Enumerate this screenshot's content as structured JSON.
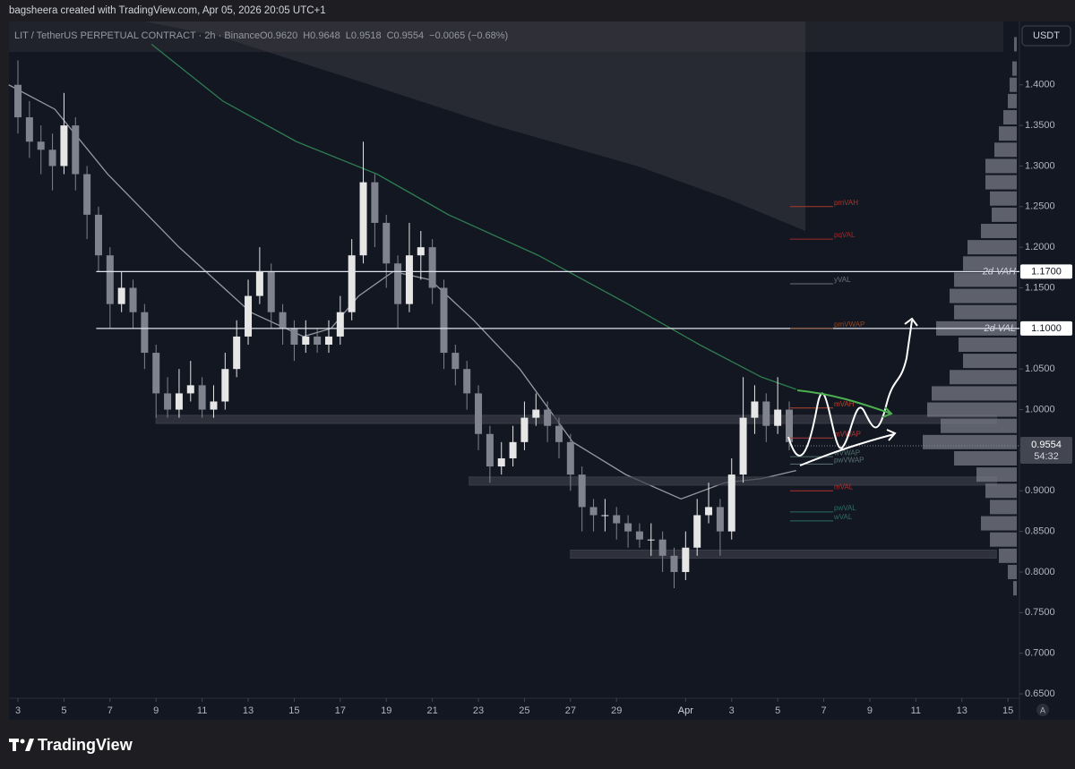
{
  "chart_data": {
    "type": "candlestick",
    "attribution": "bagsheera created with TradingView.com, Apr 05, 2026 20:05 UTC+1",
    "symbol": "LIT / TetherUS PERPETUAL CONTRACT · 2h · Binance",
    "header_values": [
      "O0.9620",
      "H0.9648",
      "L0.9518",
      "C0.9554",
      "−0.0065 (−0.68%)"
    ],
    "currency": "USDT",
    "brand": "TradingView",
    "auto_button": "A",
    "up_color": "#e6e6e6",
    "down_color": "#80838d",
    "x": [
      3,
      3.5,
      4,
      4.5,
      5,
      5.5,
      6,
      6.5,
      7,
      7.5,
      8,
      8.5,
      9,
      9.5,
      10,
      10.5,
      11,
      11.5,
      12,
      12.5,
      13,
      13.5,
      14,
      14.5,
      15,
      15.5,
      16,
      16.5,
      17,
      17.5,
      18,
      18.5,
      19,
      19.5,
      20,
      20.5,
      21,
      21.5,
      22,
      22.5,
      23,
      23.5,
      24,
      24.5,
      25,
      25.5,
      26,
      26.5,
      27,
      27.5,
      28,
      28.5,
      29,
      29.5,
      30,
      30.5,
      31,
      31.5,
      32,
      32.5,
      33,
      33.5,
      34,
      34.5,
      35,
      35.5,
      36,
      36.5
    ],
    "open": [
      1.4,
      1.36,
      1.33,
      1.32,
      1.3,
      1.35,
      1.29,
      1.24,
      1.19,
      1.13,
      1.15,
      1.12,
      1.07,
      1.02,
      1.0,
      1.02,
      1.03,
      1.0,
      1.01,
      1.05,
      1.09,
      1.14,
      1.17,
      1.12,
      1.1,
      1.08,
      1.09,
      1.08,
      1.09,
      1.12,
      1.19,
      1.28,
      1.23,
      1.18,
      1.13,
      1.19,
      1.2,
      1.15,
      1.07,
      1.05,
      1.02,
      0.97,
      0.93,
      0.94,
      0.96,
      0.99,
      1.0,
      0.98,
      0.96,
      0.92,
      0.88,
      0.87,
      0.87,
      0.86,
      0.85,
      0.84,
      0.84,
      0.82,
      0.8,
      0.83,
      0.87,
      0.88,
      0.85,
      0.92,
      0.99,
      1.01,
      0.98,
      1.0
    ],
    "high": [
      1.43,
      1.38,
      1.35,
      1.34,
      1.39,
      1.36,
      1.3,
      1.25,
      1.2,
      1.17,
      1.16,
      1.13,
      1.08,
      1.04,
      1.05,
      1.06,
      1.04,
      1.03,
      1.07,
      1.11,
      1.16,
      1.2,
      1.18,
      1.13,
      1.11,
      1.11,
      1.1,
      1.11,
      1.14,
      1.21,
      1.33,
      1.29,
      1.24,
      1.19,
      1.23,
      1.22,
      1.21,
      1.16,
      1.08,
      1.06,
      1.03,
      0.98,
      0.96,
      0.98,
      1.01,
      1.02,
      1.01,
      0.99,
      0.97,
      0.93,
      0.89,
      0.89,
      0.88,
      0.87,
      0.86,
      0.86,
      0.85,
      0.83,
      0.85,
      0.89,
      0.91,
      0.89,
      0.94,
      1.04,
      1.03,
      1.02,
      1.04,
      1.01
    ],
    "low": [
      1.34,
      1.31,
      1.29,
      1.27,
      1.29,
      1.27,
      1.21,
      1.17,
      1.1,
      1.12,
      1.1,
      1.05,
      0.99,
      0.99,
      0.99,
      1.01,
      0.99,
      0.99,
      1.0,
      1.04,
      1.08,
      1.13,
      1.1,
      1.08,
      1.06,
      1.07,
      1.07,
      1.07,
      1.08,
      1.11,
      1.18,
      1.2,
      1.15,
      1.1,
      1.12,
      1.16,
      1.13,
      1.05,
      1.03,
      1.0,
      0.95,
      0.91,
      0.92,
      0.93,
      0.95,
      0.98,
      0.96,
      0.94,
      0.9,
      0.85,
      0.85,
      0.85,
      0.84,
      0.83,
      0.83,
      0.82,
      0.8,
      0.78,
      0.79,
      0.82,
      0.86,
      0.82,
      0.84,
      0.91,
      0.97,
      0.96,
      0.97,
      0.95
    ],
    "close": [
      1.36,
      1.33,
      1.32,
      1.3,
      1.35,
      1.29,
      1.24,
      1.19,
      1.13,
      1.15,
      1.12,
      1.07,
      1.02,
      1.0,
      1.02,
      1.03,
      1.0,
      1.01,
      1.05,
      1.09,
      1.14,
      1.17,
      1.12,
      1.1,
      1.08,
      1.09,
      1.08,
      1.09,
      1.12,
      1.19,
      1.28,
      1.23,
      1.18,
      1.13,
      1.19,
      1.2,
      1.15,
      1.07,
      1.05,
      1.02,
      0.97,
      0.93,
      0.94,
      0.96,
      0.99,
      1.0,
      0.98,
      0.96,
      0.92,
      0.88,
      0.87,
      0.87,
      0.86,
      0.85,
      0.84,
      0.84,
      0.82,
      0.8,
      0.83,
      0.87,
      0.88,
      0.85,
      0.92,
      0.99,
      1.01,
      0.98,
      1.0,
      0.96
    ],
    "series": [
      {
        "color": "#9598a1",
        "x": [
          2.6,
          4.6,
          6.9,
          10.0,
          13.1,
          15.4,
          16.6,
          17.8,
          19.3,
          20.9,
          22.8,
          24.8,
          27.1,
          29.4,
          31.8,
          33.7,
          35.3,
          36.8
        ],
        "values": [
          1.4,
          1.37,
          1.29,
          1.2,
          1.12,
          1.09,
          1.1,
          1.14,
          1.17,
          1.16,
          1.11,
          1.05,
          0.96,
          0.92,
          0.89,
          0.91,
          0.915,
          0.925
        ]
      },
      {
        "color": "#2e7d4f",
        "x": [
          8.8,
          11.9,
          15.1,
          18.6,
          21.7,
          25.6,
          29.5,
          32.6,
          35.3,
          36.8
        ],
        "values": [
          1.45,
          1.38,
          1.33,
          1.29,
          1.24,
          1.19,
          1.13,
          1.08,
          1.04,
          1.025
        ]
      },
      {
        "color": "#3a3b42",
        "area": true,
        "x": [
          8.5,
          11.7,
          18.3,
          23.7,
          29.9,
          33.8,
          37.2
        ],
        "values": [
          1.478,
          1.46,
          1.4,
          1.35,
          1.3,
          1.26,
          1.22
        ]
      }
    ],
    "levels": [
      {
        "label": "2d VAH",
        "value": 1.17,
        "value_label": "1.1700"
      },
      {
        "label": "2d VAL",
        "value": 1.1,
        "value_label": "1.1000"
      }
    ],
    "level_start": 6.4,
    "annotations": [
      {
        "label": "pmVAH",
        "value": 1.25,
        "color": "#a33a2c"
      },
      {
        "label": "pqVAL",
        "value": 1.21,
        "color": "#9c2a2a"
      },
      {
        "label": "yVAL",
        "value": 1.155,
        "color": "#6f727b"
      },
      {
        "label": "pmVWAP",
        "value": 1.1,
        "color": "#8a4a2a"
      },
      {
        "label": "mVAH",
        "value": 1.002,
        "color": "#b8452c"
      },
      {
        "label": "mVWAP",
        "value": 0.965,
        "color": "#b03a3a"
      },
      {
        "label": "wVWAP",
        "value": 0.942,
        "color": "#4d6e6a"
      },
      {
        "label": "pwVWAP",
        "value": 0.933,
        "color": "#5a7272"
      },
      {
        "label": "mVAL",
        "value": 0.9,
        "color": "#b03030"
      },
      {
        "label": "pwVAL",
        "value": 0.874,
        "color": "#2d6e63"
      },
      {
        "label": "wVAL",
        "value": 0.863,
        "color": "#2d6e63"
      }
    ],
    "zones": [
      {
        "low": 0.983,
        "high": 0.993,
        "start": 9.0
      },
      {
        "low": 0.907,
        "high": 0.917,
        "start": 22.6
      },
      {
        "low": 0.817,
        "high": 0.827,
        "start": 27.0
      }
    ],
    "zone_end": 45.5,
    "volume_profile": {
      "prices": [
        1.45,
        1.42,
        1.4,
        1.38,
        1.36,
        1.34,
        1.32,
        1.3,
        1.28,
        1.26,
        1.24,
        1.22,
        1.2,
        1.18,
        1.16,
        1.14,
        1.12,
        1.1,
        1.08,
        1.06,
        1.04,
        1.02,
        1.0,
        0.98,
        0.96,
        0.94,
        0.92,
        0.9,
        0.88,
        0.86,
        0.84,
        0.82,
        0.8,
        0.78
      ],
      "values": [
        3,
        5,
        8,
        10,
        15,
        20,
        25,
        35,
        35,
        30,
        28,
        40,
        55,
        60,
        70,
        75,
        70,
        90,
        65,
        60,
        75,
        95,
        100,
        85,
        105,
        70,
        45,
        35,
        30,
        40,
        30,
        20,
        10,
        4
      ]
    },
    "last_price": {
      "value": 0.9554,
      "label": "0.9554",
      "countdown": "54:32"
    },
    "xlim": [
      2.61,
      46.5
    ],
    "xticks": [
      3,
      5,
      7,
      9,
      11,
      13,
      15,
      17,
      19,
      21,
      23,
      25,
      27,
      29,
      {
        "value": 32,
        "label": "Apr"
      },
      {
        "value": 34,
        "label": "3"
      },
      {
        "value": 36,
        "label": "5"
      },
      {
        "value": 38,
        "label": "7"
      },
      {
        "value": 40,
        "label": "9"
      },
      {
        "value": 42,
        "label": "11"
      },
      {
        "value": 44,
        "label": "13"
      },
      {
        "value": 46,
        "label": "15"
      }
    ],
    "ylim": [
      0.6445,
      1.478
    ],
    "yticks": [
      {
        "value": 0.65,
        "label": "0.6500"
      },
      {
        "value": 0.7,
        "label": "0.7000"
      },
      {
        "value": 0.75,
        "label": "0.7500"
      },
      {
        "value": 0.8,
        "label": "0.8000"
      },
      {
        "value": 0.85,
        "label": "0.8500"
      },
      {
        "value": 0.9,
        "label": "0.9000"
      },
      {
        "value": 0.95,
        "label": "0.9500"
      },
      {
        "value": 1.0,
        "label": "1.0000"
      },
      {
        "value": 1.05,
        "label": "1.0500"
      },
      {
        "value": 1.1,
        "label": "1.1000"
      },
      {
        "value": 1.15,
        "label": "1.1500"
      },
      {
        "value": 1.2,
        "label": "1.2000"
      },
      {
        "value": 1.25,
        "label": "1.2500"
      },
      {
        "value": 1.3,
        "label": "1.3000"
      },
      {
        "value": 1.35,
        "label": "1.3500"
      },
      {
        "value": 1.4,
        "label": "1.4000"
      }
    ]
  }
}
